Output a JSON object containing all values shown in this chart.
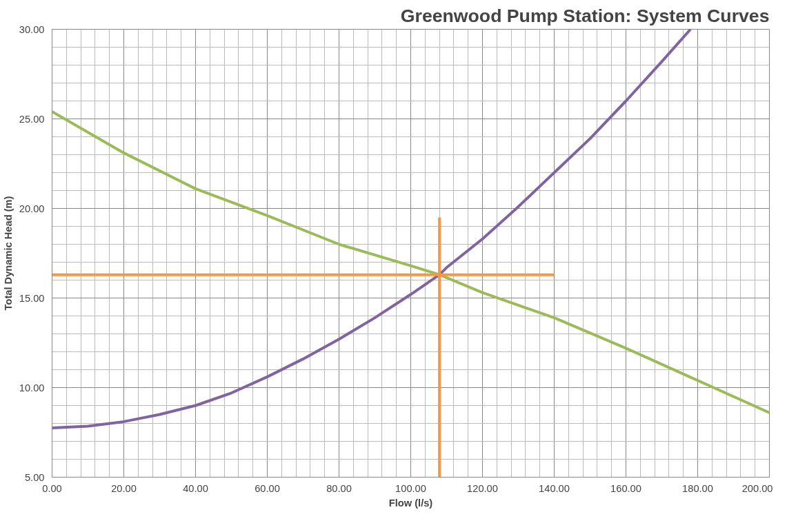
{
  "chart_data": {
    "type": "line",
    "title": "Greenwood Pump Station: System Curves",
    "xlabel": "Flow (l/s)",
    "ylabel": "Total Dynamic Head (m)",
    "xlim": [
      0,
      200
    ],
    "ylim": [
      5,
      30
    ],
    "xticks": [
      {
        "value": 0,
        "label": "0.00"
      },
      {
        "value": 20,
        "label": "20.00"
      },
      {
        "value": 40,
        "label": "40.00"
      },
      {
        "value": 60,
        "label": "60.00"
      },
      {
        "value": 80,
        "label": "80.00"
      },
      {
        "value": 100,
        "label": "100.00"
      },
      {
        "value": 120,
        "label": "120.00"
      },
      {
        "value": 140,
        "label": "140.00"
      },
      {
        "value": 160,
        "label": "160.00"
      },
      {
        "value": 180,
        "label": "180.00"
      },
      {
        "value": 200,
        "label": "200.00"
      }
    ],
    "yticks": [
      {
        "value": 5,
        "label": "5.00"
      },
      {
        "value": 10,
        "label": "10.00"
      },
      {
        "value": 15,
        "label": "15.00"
      },
      {
        "value": 20,
        "label": "20.00"
      },
      {
        "value": 25,
        "label": "25.00"
      },
      {
        "value": 30,
        "label": "30.00"
      }
    ],
    "grid": true,
    "marker": "none",
    "line_style": "solid",
    "series": [
      {
        "color": "#8064a2",
        "x": [
          0,
          10,
          20,
          30,
          40,
          50,
          60,
          70,
          80,
          90,
          100,
          108,
          110,
          120,
          130,
          140,
          150,
          160,
          170,
          178
        ],
        "values": [
          7.75,
          7.85,
          8.1,
          8.5,
          9.0,
          9.7,
          10.6,
          11.6,
          12.7,
          13.9,
          15.2,
          16.3,
          16.7,
          18.3,
          20.1,
          22.0,
          23.9,
          26.0,
          28.2,
          30.0
        ]
      },
      {
        "color": "#9bbb59",
        "x": [
          0,
          20,
          40,
          60,
          80,
          100,
          108,
          120,
          140,
          160,
          180,
          200
        ],
        "values": [
          25.4,
          23.1,
          21.1,
          19.6,
          18.0,
          16.8,
          16.3,
          15.3,
          13.9,
          12.2,
          10.4,
          8.6
        ]
      },
      {
        "color": "#f79646",
        "x": [
          0,
          140
        ],
        "values": [
          16.3,
          16.3
        ]
      },
      {
        "color": "#f79646",
        "x": [
          108,
          108
        ],
        "values": [
          5,
          19.5
        ]
      }
    ]
  }
}
